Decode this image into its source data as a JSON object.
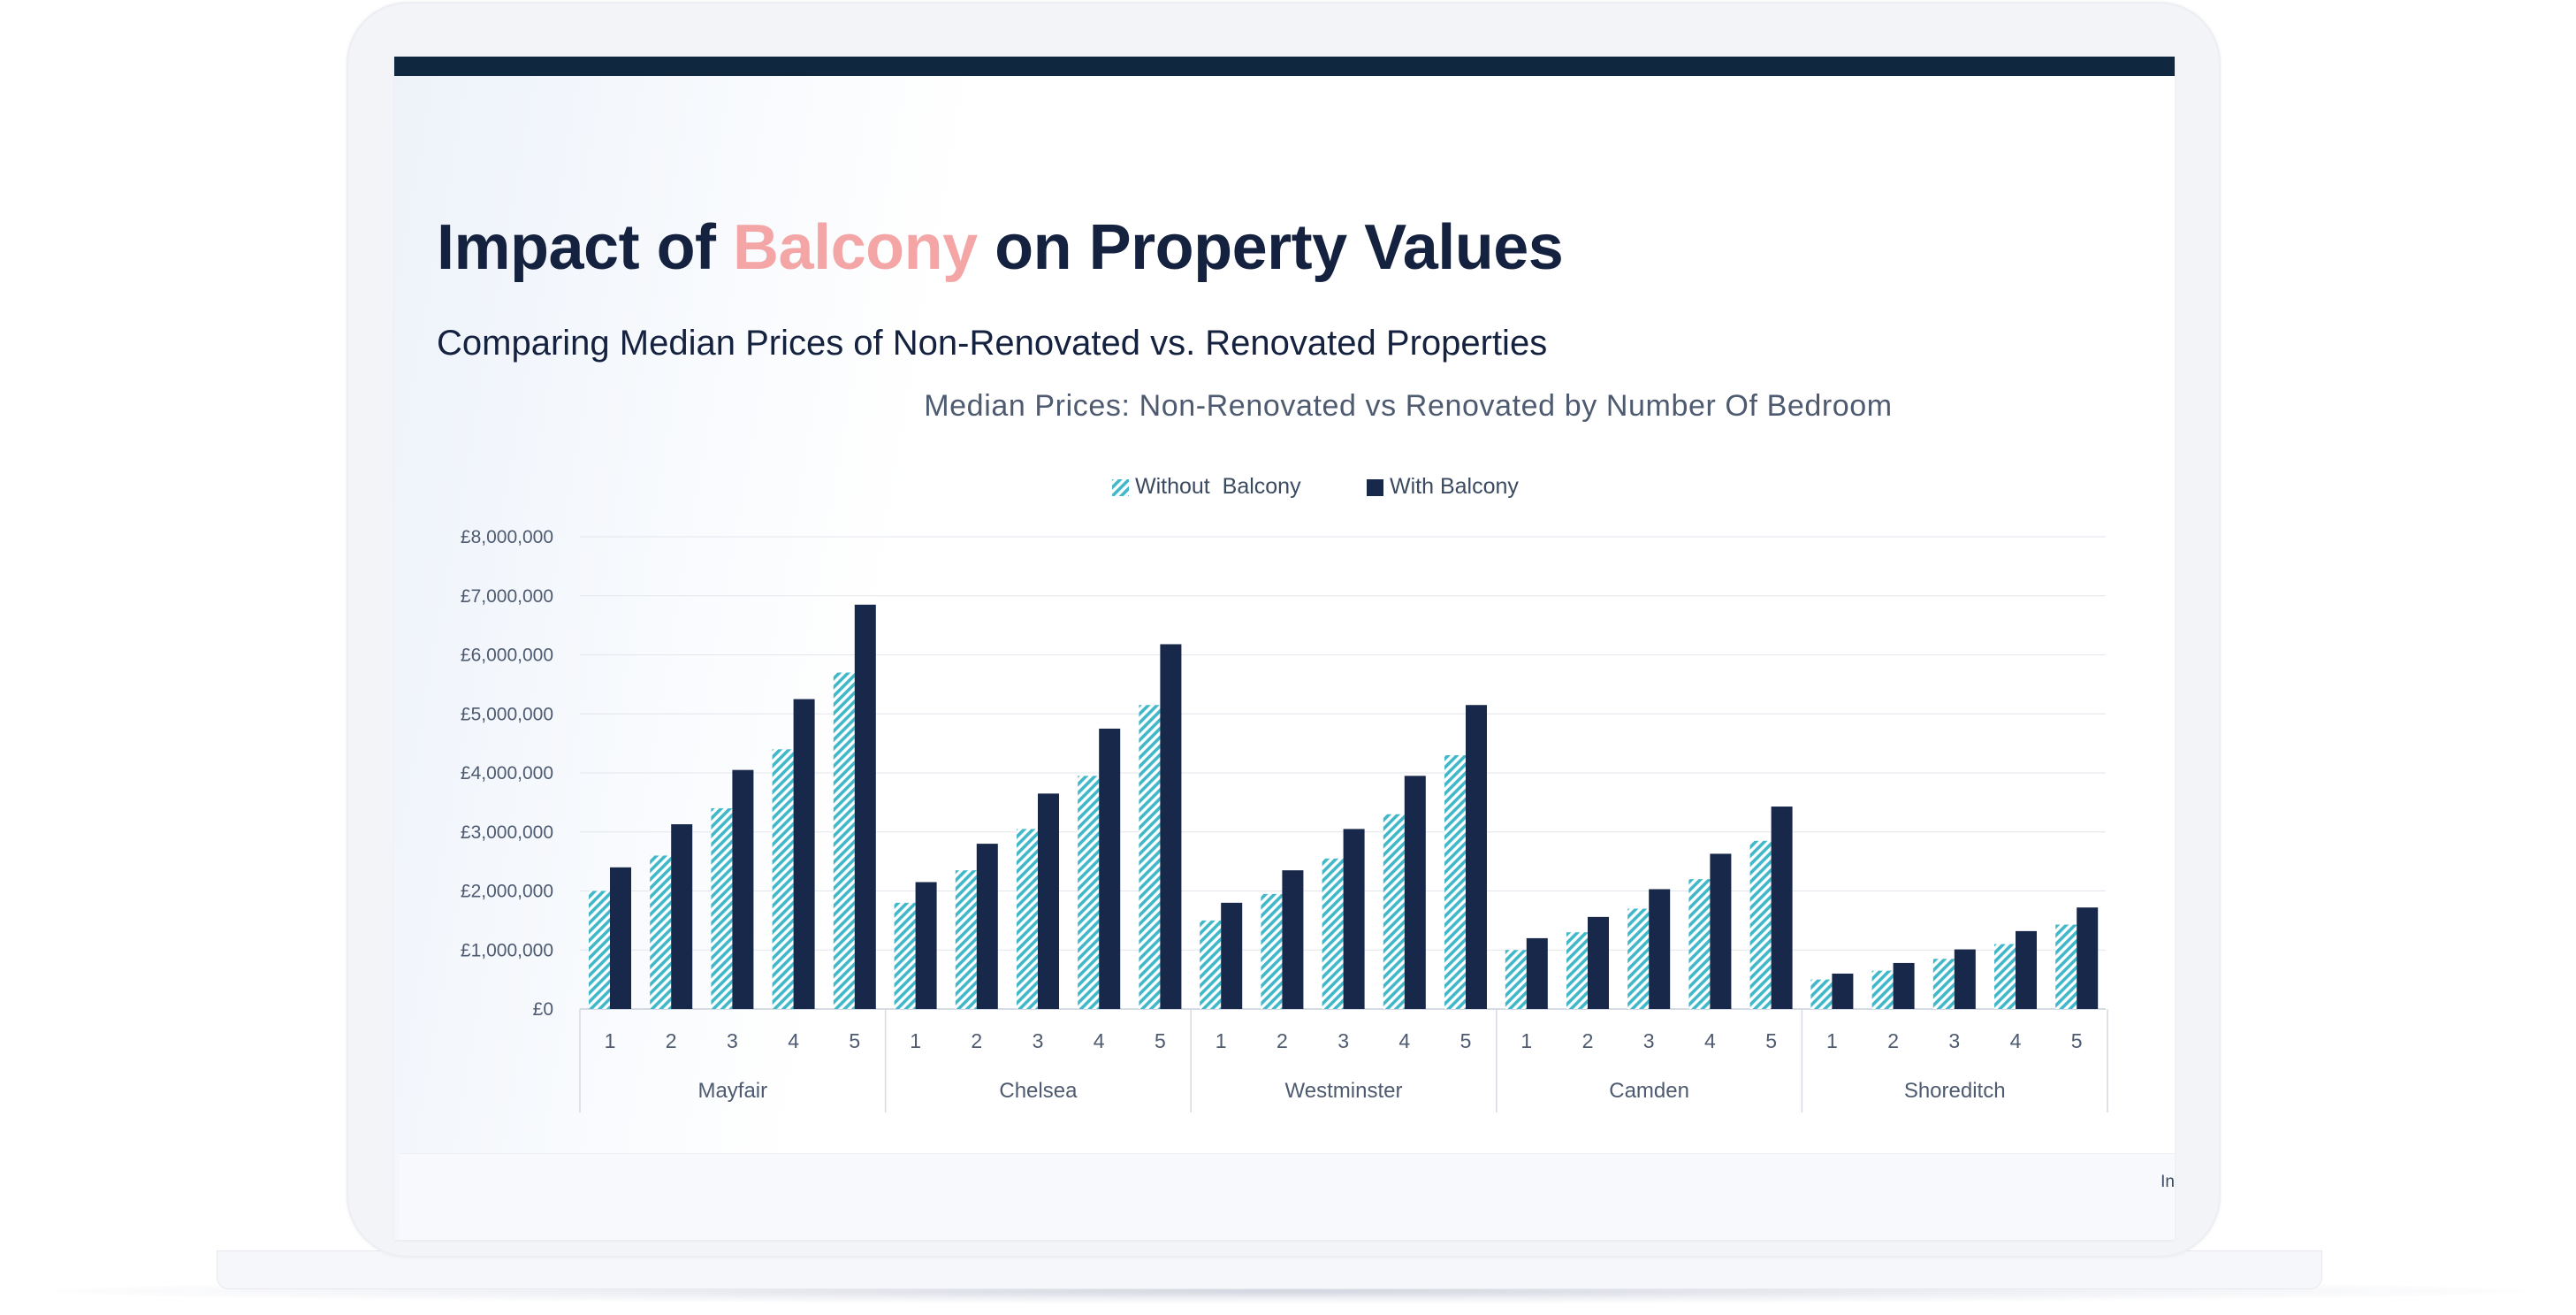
{
  "header": {
    "title_before": "Impact of ",
    "title_accent": "Balcony",
    "title_after": " on Property Values",
    "subtitle": "Comparing Median Prices of Non-Renovated vs. Renovated Properties"
  },
  "footer": {
    "text": "In"
  },
  "colors": {
    "dark_navy": "#15223f",
    "accent_pink": "#f4a6a6",
    "series_without": "#41b8c9",
    "series_with": "#17284a",
    "top_bar": "#0f2840"
  },
  "chart_data": {
    "type": "bar",
    "title": "Median Prices: Non-Renovated vs Renovated by Number Of Bedroom",
    "xlabel": "",
    "ylabel": "",
    "ylim": [
      0,
      8000000
    ],
    "y_ticks": [
      0,
      1000000,
      2000000,
      3000000,
      4000000,
      5000000,
      6000000,
      7000000,
      8000000
    ],
    "y_tick_labels": [
      "£0",
      "£1,000,000",
      "£2,000,000",
      "£3,000,000",
      "£4,000,000",
      "£5,000,000",
      "£6,000,000",
      "£7,000,000",
      "£8,000,000"
    ],
    "grid": true,
    "legend_position": "top-center",
    "legend": [
      "Without  Balcony",
      "With Balcony"
    ],
    "groups": [
      "Mayfair",
      "Chelsea",
      "Westminster",
      "Camden",
      "Shoreditch"
    ],
    "categories": [
      "1",
      "2",
      "3",
      "4",
      "5"
    ],
    "series": [
      {
        "name": "Without  Balcony",
        "pattern": "hatched",
        "values": [
          [
            2000000,
            2600000,
            3400000,
            4400000,
            5700000
          ],
          [
            1800000,
            2350000,
            3050000,
            3950000,
            5150000
          ],
          [
            1500000,
            1950000,
            2550000,
            3300000,
            4300000
          ],
          [
            1000000,
            1300000,
            1700000,
            2200000,
            2850000
          ],
          [
            500000,
            650000,
            850000,
            1100000,
            1430000
          ]
        ]
      },
      {
        "name": "With Balcony",
        "pattern": "solid",
        "values": [
          [
            2400000,
            3130000,
            4050000,
            5250000,
            6850000
          ],
          [
            2150000,
            2800000,
            3650000,
            4750000,
            6180000
          ],
          [
            1800000,
            2350000,
            3050000,
            3950000,
            5150000
          ],
          [
            1200000,
            1560000,
            2030000,
            2630000,
            3430000
          ],
          [
            600000,
            780000,
            1010000,
            1320000,
            1720000
          ]
        ]
      }
    ]
  }
}
